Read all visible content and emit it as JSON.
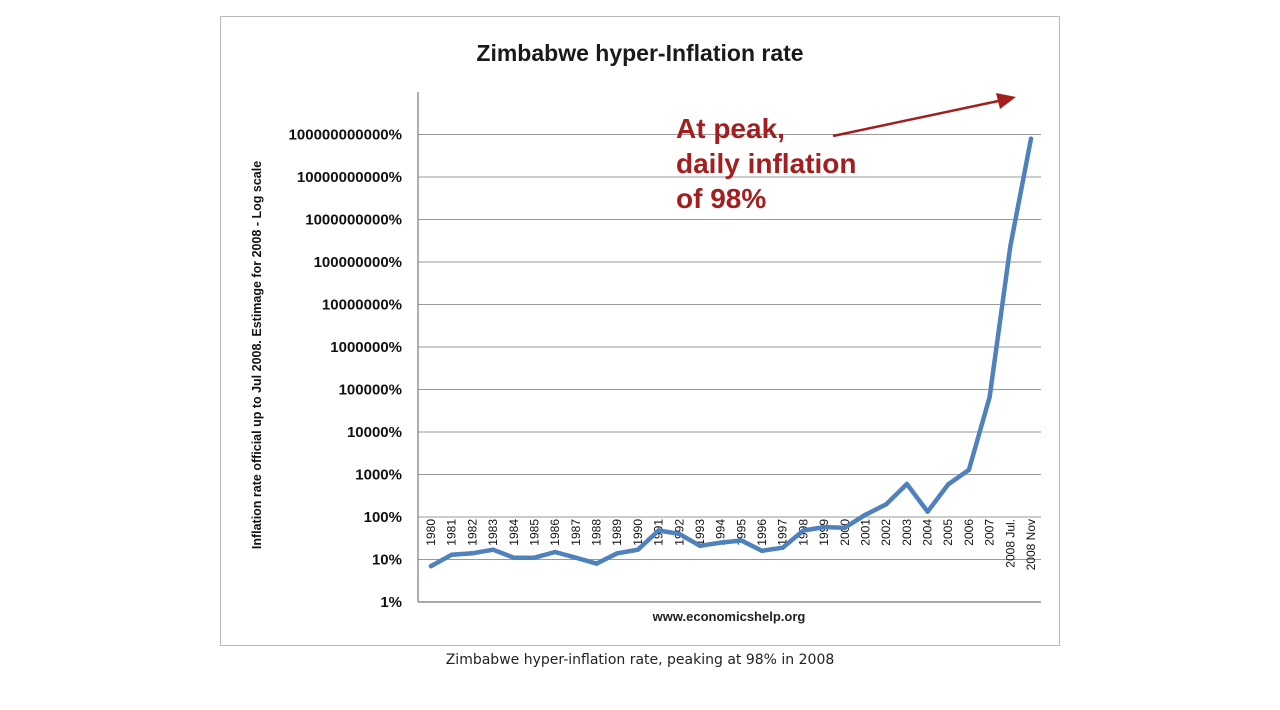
{
  "chart_data": {
    "type": "line",
    "title": "Zimbabwe hyper-Inflation rate",
    "ylabel": "Inflation rate official up to Jul 2008. Estimage for 2008 - Log scale",
    "xlabel": "",
    "yscale": "log",
    "ylim": [
      1,
      1000000000000
    ],
    "yticks": [
      1,
      10,
      100,
      1000,
      10000,
      100000,
      1000000,
      10000000,
      100000000,
      1000000000,
      10000000000,
      100000000000
    ],
    "ytick_labels": [
      "1%",
      "10%",
      "100%",
      "1000%",
      "10000%",
      "100000%",
      "1000000%",
      "10000000%",
      "100000000%",
      "1000000000%",
      "10000000000%",
      "100000000000%"
    ],
    "grid": true,
    "categories": [
      "1980",
      "1981",
      "1982",
      "1983",
      "1984",
      "1985",
      "1986",
      "1987",
      "1988",
      "1989",
      "1990",
      "1991",
      "1992",
      "1993",
      "1994",
      "1995",
      "1996",
      "1997",
      "1998",
      "1999",
      "2000",
      "2001",
      "2002",
      "2003",
      "2004",
      "2005",
      "2006",
      "2007",
      "2008 Jul.",
      "2008 Nov"
    ],
    "series": [
      {
        "name": "Inflation rate",
        "color": "#4f81bd",
        "values": [
          7,
          13,
          14,
          17,
          11,
          11,
          15,
          11,
          8,
          14,
          17,
          48,
          40,
          21,
          25,
          28,
          16,
          19,
          48,
          58,
          56,
          113,
          199,
          599,
          133,
          586,
          1281,
          66212,
          231000000,
          79600000000
        ]
      }
    ],
    "annotation": {
      "lines": [
        "At peak,",
        "daily inflation",
        "of 98%"
      ],
      "color": "#a31f1f",
      "target_category": "2008 Nov"
    },
    "source": "www.economicshelp.org"
  },
  "caption": "Zimbabwe hyper-inflation rate, peaking at 98% in 2008"
}
